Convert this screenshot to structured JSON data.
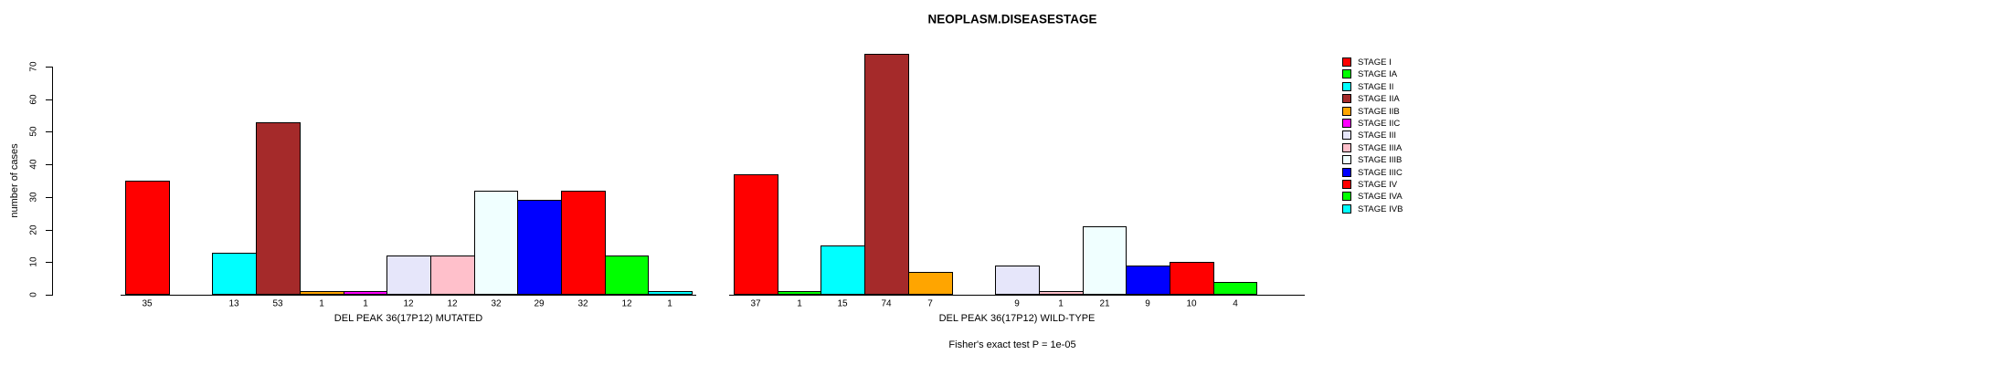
{
  "title": "NEOPLASM.DISEASESTAGE",
  "chart_data": {
    "type": "bar",
    "title": "NEOPLASM.DISEASESTAGE",
    "ylabel": "number of cases",
    "ylim": [
      0,
      70
    ],
    "yticks": [
      0,
      10,
      20,
      30,
      40,
      50,
      60,
      70
    ],
    "grid": false,
    "legend_position": "right",
    "categories": [
      "STAGE I",
      "STAGE IA",
      "STAGE II",
      "STAGE IIA",
      "STAGE IIB",
      "STAGE IIC",
      "STAGE III",
      "STAGE IIIA",
      "STAGE IIIB",
      "STAGE IIIC",
      "STAGE IV",
      "STAGE IVA",
      "STAGE IVB"
    ],
    "colors": [
      "#FF0000",
      "#00FF00",
      "#00FFFF",
      "#A52A2A",
      "#FFA500",
      "#FF00FF",
      "#E6E6FA",
      "#FFC0CB",
      "#F0FFFF",
      "#0000FF",
      "#FF0000",
      "#00FF00",
      "#00FFFF"
    ],
    "series": [
      {
        "name": "DEL PEAK 36(17P12) MUTATED",
        "values": [
          35,
          0,
          13,
          53,
          1,
          1,
          12,
          12,
          32,
          29,
          32,
          12,
          1
        ]
      },
      {
        "name": "DEL PEAK 36(17P12) WILD-TYPE",
        "values": [
          37,
          1,
          15,
          74,
          7,
          0,
          9,
          1,
          21,
          9,
          10,
          4,
          0
        ]
      }
    ],
    "bar_value_labels_shown_for_nonzero_only": true,
    "annotation": "Fisher's exact test P = 1e-05"
  },
  "legend": {
    "items": [
      {
        "label": "STAGE I",
        "color": "#FF0000"
      },
      {
        "label": "STAGE IA",
        "color": "#00FF00"
      },
      {
        "label": "STAGE II",
        "color": "#00FFFF"
      },
      {
        "label": "STAGE IIA",
        "color": "#A52A2A"
      },
      {
        "label": "STAGE IIB",
        "color": "#FFA500"
      },
      {
        "label": "STAGE IIC",
        "color": "#FF00FF"
      },
      {
        "label": "STAGE III",
        "color": "#E6E6FA"
      },
      {
        "label": "STAGE IIIA",
        "color": "#FFC0CB"
      },
      {
        "label": "STAGE IIIB",
        "color": "#F0FFFF"
      },
      {
        "label": "STAGE IIIC",
        "color": "#0000FF"
      },
      {
        "label": "STAGE IV",
        "color": "#FF0000"
      },
      {
        "label": "STAGE IVA",
        "color": "#00FF00"
      },
      {
        "label": "STAGE IVB",
        "color": "#00FFFF"
      }
    ]
  }
}
